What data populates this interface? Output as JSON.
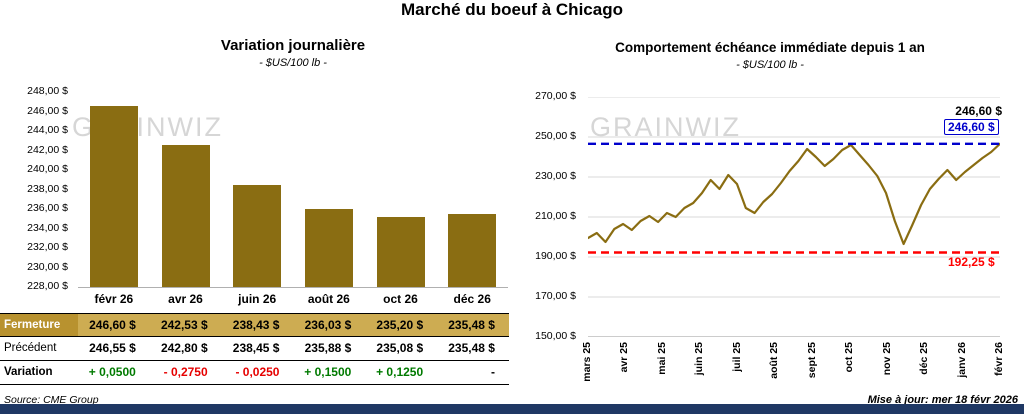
{
  "page": {
    "title": "Marché du boeuf à Chicago",
    "watermark": "GRAINWIZ",
    "source": "Source: CME Group",
    "updated": "Mise à jour: mer 18 févr 2026"
  },
  "left_chart": {
    "title": "Variation journalière",
    "subtitle": "- $US/100 lb -"
  },
  "right_chart": {
    "title": "Comportement échéance immédiate depuis 1 an",
    "subtitle": "- $US/100 lb -",
    "last_point_label": "246,60 $",
    "ref_high_label": "246,60 $",
    "ref_low_label": "192,25 $"
  },
  "table": {
    "rows": [
      {
        "key": "fermeture",
        "label": "Fermeture",
        "values": [
          "246,60  $",
          "242,53  $",
          "238,43  $",
          "236,03  $",
          "235,20  $",
          "235,48  $"
        ]
      },
      {
        "key": "precedent",
        "label": "Précédent",
        "values": [
          "246,55  $",
          "242,80  $",
          "238,45  $",
          "235,88  $",
          "235,08  $",
          "235,48  $"
        ]
      },
      {
        "key": "variation",
        "label": "Variation",
        "values": [
          "+ 0,0500",
          "- 0,2750",
          "- 0,0250",
          "+ 0,1500",
          "+ 0,1250",
          "-"
        ],
        "colors": [
          "green",
          "red",
          "red",
          "green",
          "green",
          "black"
        ]
      }
    ]
  },
  "colors": {
    "accent_gold": "#8A6D12",
    "ref_blue": "#0000CC",
    "ref_red": "#FF0000",
    "navy_bar": "#1F3864",
    "positive": "#007A00",
    "negative": "#E60000"
  },
  "chart_data": [
    {
      "type": "bar",
      "title": "Variation journalière",
      "subtitle": "- $US/100 lb -",
      "ylabel": "$US/100 lb",
      "categories": [
        "févr 26",
        "avr 26",
        "juin 26",
        "août 26",
        "oct 26",
        "déc 26"
      ],
      "values": [
        246.6,
        242.53,
        238.43,
        236.03,
        235.2,
        235.48
      ],
      "ylim": [
        228,
        248
      ],
      "ytick_step": 2,
      "bar_color": "#8A6D12",
      "grid": false
    },
    {
      "type": "line",
      "title": "Comportement échéance immédiate depuis 1 an",
      "subtitle": "- $US/100 lb -",
      "ylabel": "$US/100 lb",
      "x_labels": [
        "mars 25",
        "avr 25",
        "mai 25",
        "juin 25",
        "juil 25",
        "août 25",
        "sept 25",
        "oct 25",
        "nov 25",
        "déc 25",
        "janv 26",
        "févr 26"
      ],
      "values": [
        199.5,
        202,
        197.5,
        204,
        206.5,
        203.5,
        208,
        210.5,
        207.5,
        212,
        210,
        214.5,
        217,
        222,
        228.5,
        224,
        231,
        226.5,
        214.5,
        212,
        217.5,
        221.5,
        227,
        233,
        238,
        244,
        240,
        235.5,
        239,
        243.5,
        246,
        241,
        236,
        230.5,
        222,
        208,
        196.5,
        206,
        216,
        224,
        229,
        233.5,
        228.5,
        232.5,
        236,
        239.5,
        242.5,
        246.6
      ],
      "ylim": [
        150,
        270
      ],
      "ytick_step": 20,
      "line_color": "#8A6D12",
      "grid": true,
      "ref_lines": [
        {
          "value": 246.6,
          "label": "246,60 $",
          "color": "#0000CC",
          "style": "dashed"
        },
        {
          "value": 192.25,
          "label": "192,25 $",
          "color": "#FF0000",
          "style": "dashed"
        }
      ]
    }
  ]
}
